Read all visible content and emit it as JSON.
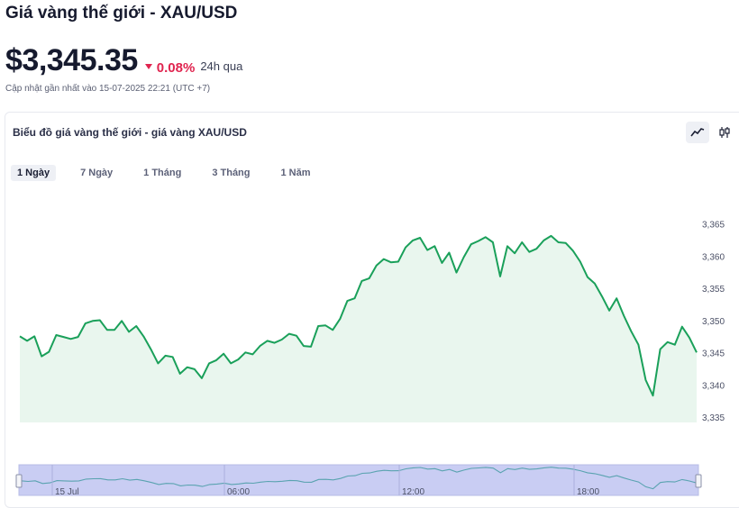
{
  "header": {
    "title": "Giá vàng thế giới - XAU/USD"
  },
  "price": {
    "value": "$3,345.35",
    "change": "0.08%",
    "period": "24h qua",
    "change_color": "#e0244f"
  },
  "updated": "Cập nhật gần nhất vào 15-07-2025 22:21 (UTC +7)",
  "chart_card": {
    "title": "Biểu đồ giá vàng thế giới - giá vàng XAU/USD",
    "tabs": [
      "1 Ngày",
      "7 Ngày",
      "1 Tháng",
      "3 Tháng",
      "1 Năm"
    ],
    "active_tab": "1 Ngày",
    "icons": [
      "line-chart-icon",
      "candlestick-icon"
    ]
  },
  "chart_data": {
    "type": "area",
    "y_ticks": [
      "3,365",
      "3,360",
      "3,355",
      "3,350",
      "3,345",
      "3,340",
      "3,335"
    ],
    "ylim": [
      3334,
      3368
    ],
    "values": [
      3347.6,
      3346.9,
      3347.6,
      3344.5,
      3345.2,
      3347.8,
      3347.5,
      3347.2,
      3347.5,
      3349.6,
      3350.0,
      3350.1,
      3348.6,
      3348.6,
      3350.0,
      3348.3,
      3349.2,
      3347.6,
      3345.6,
      3343.4,
      3344.6,
      3344.4,
      3341.8,
      3342.8,
      3342.5,
      3341.1,
      3343.4,
      3343.9,
      3344.9,
      3343.4,
      3344.0,
      3345.1,
      3344.8,
      3346.1,
      3346.9,
      3346.6,
      3347.1,
      3348.0,
      3347.7,
      3346.1,
      3346.0,
      3349.2,
      3349.3,
      3348.6,
      3350.3,
      3353.1,
      3353.5,
      3356.2,
      3356.6,
      3358.6,
      3359.6,
      3359.1,
      3359.2,
      3361.4,
      3362.5,
      3362.9,
      3361.0,
      3361.6,
      3359.0,
      3360.6,
      3357.5,
      3359.9,
      3361.9,
      3362.4,
      3363.0,
      3362.2,
      3356.9,
      3361.6,
      3360.5,
      3362.2,
      3360.7,
      3361.2,
      3362.5,
      3363.2,
      3362.2,
      3362.1,
      3360.9,
      3359.2,
      3356.8,
      3355.8,
      3353.8,
      3351.6,
      3353.5,
      3350.8,
      3348.4,
      3346.3,
      3340.8,
      3338.4,
      3345.6,
      3346.7,
      3346.3,
      3349.1,
      3347.4,
      3345.1
    ],
    "navigator_labels": [
      "15 Jul",
      "06:00",
      "12:00",
      "18:00"
    ],
    "line_color": "#1aa05a",
    "fill_color": "#e9f6ee",
    "grid": false
  }
}
